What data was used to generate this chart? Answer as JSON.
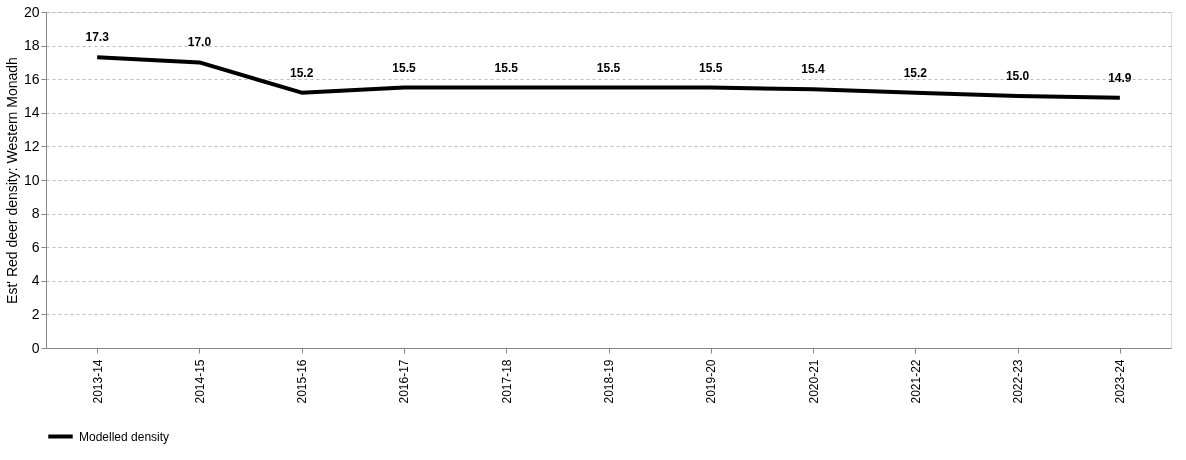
{
  "chart_data": {
    "type": "line",
    "ylabel": "Est' Red deer density: Western Monadh",
    "categories": [
      "2013-14",
      "2014-15",
      "2015-16",
      "2016-17",
      "2017-18",
      "2018-19",
      "2019-20",
      "2020-21",
      "2021-22",
      "2022-23",
      "2023-24"
    ],
    "series": [
      {
        "name": "Modelled density",
        "color": "#000000",
        "values": [
          17.3,
          17.0,
          15.2,
          15.5,
          15.5,
          15.5,
          15.5,
          15.4,
          15.2,
          15.0,
          14.9
        ],
        "value_labels": [
          "17.3",
          "17.0",
          "15.2",
          "15.5",
          "15.5",
          "15.5",
          "15.5",
          "15.4",
          "15.2",
          "15.0",
          "14.9"
        ]
      }
    ],
    "ylim": [
      0,
      20
    ],
    "yticks": [
      0,
      2,
      4,
      6,
      8,
      10,
      12,
      14,
      16,
      18,
      20
    ],
    "grid": "y",
    "legend": "bottom",
    "marker": "none",
    "line_style": "solid"
  }
}
